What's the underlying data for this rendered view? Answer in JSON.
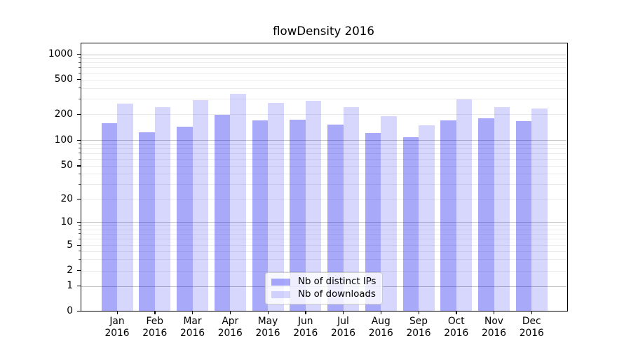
{
  "title": "flowDensity 2016",
  "colors": {
    "ips_bar": "rgba(8,8,242,0.35)",
    "downloads_bar": "rgba(8,8,242,0.16)",
    "ips_bar_flat": "#a7a7f8",
    "downloads_bar_flat": "#d8d8fb",
    "major_grid": "#c2c2c2",
    "minor_grid": "#ebebeb",
    "spine": "#000000",
    "background": "#ffffff"
  },
  "legend": {
    "items": [
      {
        "label": "Nb of distinct IPs",
        "color": "rgba(8,8,242,0.35)"
      },
      {
        "label": "Nb of downloads",
        "color": "rgba(8,8,242,0.16)"
      }
    ]
  },
  "axes": {
    "ytick_labels": [
      "1000",
      "500",
      "200",
      "100",
      "50",
      "20",
      "10",
      "5",
      "2",
      "1",
      "0"
    ],
    "months": [
      "Jan",
      "Feb",
      "Mar",
      "Apr",
      "May",
      "Jun",
      "Jul",
      "Aug",
      "Sep",
      "Oct",
      "Nov",
      "Dec"
    ],
    "year": "2016"
  },
  "chart_data": {
    "type": "bar",
    "title": "flowDensity 2016",
    "categories": [
      "Jan 2016",
      "Feb 2016",
      "Mar 2016",
      "Apr 2016",
      "May 2016",
      "Jun 2016",
      "Jul 2016",
      "Aug 2016",
      "Sep 2016",
      "Oct 2016",
      "Nov 2016",
      "Dec 2016"
    ],
    "series": [
      {
        "name": "Nb of distinct IPs",
        "values": [
          157,
          122,
          144,
          197,
          171,
          173,
          152,
          121,
          108,
          169,
          181,
          166
        ]
      },
      {
        "name": "Nb of downloads",
        "values": [
          264,
          240,
          289,
          341,
          269,
          284,
          240,
          190,
          148,
          298,
          243,
          232
        ]
      }
    ],
    "xlabel": "",
    "ylabel": "",
    "yscale": "symlog",
    "yticks": [
      0,
      1,
      2,
      5,
      10,
      20,
      50,
      100,
      200,
      500,
      1000
    ],
    "ylim": [
      0,
      1360
    ],
    "grid": true,
    "legend_position": "lower center"
  }
}
